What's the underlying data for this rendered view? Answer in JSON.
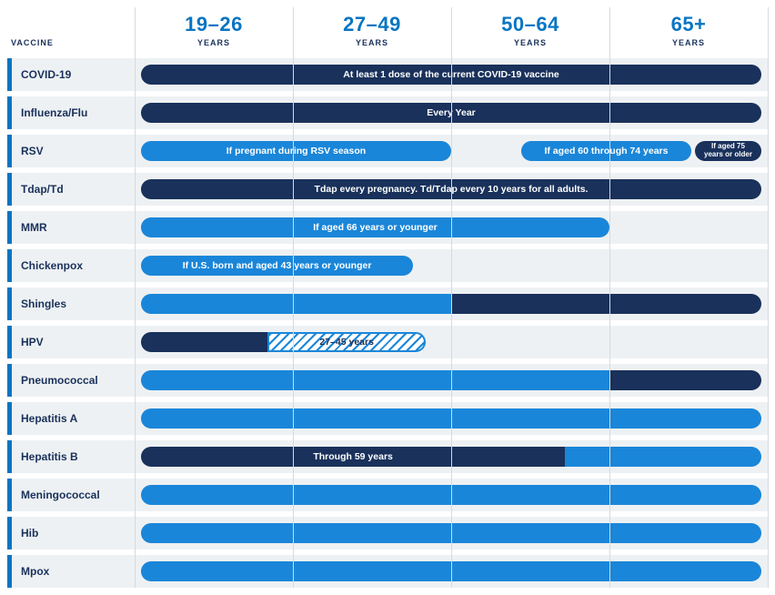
{
  "colors": {
    "dark": "#19315b",
    "light": "#1a86d9",
    "row_bg": "#eef1f3",
    "divider": "#d6dade",
    "accent": "#0a75c2"
  },
  "header": {
    "vaccine_label": "VACCINE",
    "years_label": "YEARS",
    "ages": [
      "19–26",
      "27–49",
      "50–64",
      "65+"
    ]
  },
  "trackStartPct": 1.0,
  "trackEndPct": 99.0,
  "rows": [
    {
      "name": "COVID-19",
      "bars": [
        {
          "start": 1,
          "end": 99,
          "color": "dark",
          "label": "At least 1 dose of the current COVID-19 vaccine"
        }
      ]
    },
    {
      "name": "Influenza/Flu",
      "bars": [
        {
          "start": 1,
          "end": 99,
          "color": "dark",
          "label": "Every Year"
        }
      ]
    },
    {
      "name": "RSV",
      "bars": [
        {
          "start": 1,
          "end": 50,
          "color": "light",
          "label": "If pregnant during RSV season"
        },
        {
          "start": 61,
          "end": 88,
          "color": "light",
          "label": "If aged 60 through 74 years"
        },
        {
          "start": 88.5,
          "end": 99,
          "color": "dark",
          "label": "If aged 75 years or older",
          "small": true
        }
      ]
    },
    {
      "name": "Tdap/Td",
      "bars": [
        {
          "start": 1,
          "end": 99,
          "color": "dark",
          "label": "Tdap every pregnancy. Td/Tdap every 10 years for all adults."
        }
      ]
    },
    {
      "name": "MMR",
      "bars": [
        {
          "start": 1,
          "end": 75,
          "color": "light",
          "label": "If aged 66 years or younger"
        }
      ]
    },
    {
      "name": "Chickenpox",
      "bars": [
        {
          "start": 1,
          "end": 44,
          "color": "light",
          "label": "If U.S. born and aged 43 years or younger"
        }
      ]
    },
    {
      "name": "Shingles",
      "bars": [
        {
          "start": 1,
          "end": 50,
          "color": "light",
          "label": "",
          "flatRight": true
        },
        {
          "start": 50,
          "end": 99,
          "color": "dark",
          "label": "",
          "flatLeft": true
        }
      ]
    },
    {
      "name": "HPV",
      "bars": [
        {
          "start": 1,
          "end": 21,
          "color": "dark",
          "label": "",
          "flatRight": true
        },
        {
          "start": 21,
          "end": 46,
          "color": "hatched",
          "label": "27–45 years",
          "flatLeft": true
        }
      ]
    },
    {
      "name": "Pneumococcal",
      "bars": [
        {
          "start": 1,
          "end": 75,
          "color": "light",
          "label": "",
          "flatRight": true
        },
        {
          "start": 75,
          "end": 99,
          "color": "dark",
          "label": "",
          "flatLeft": true
        }
      ]
    },
    {
      "name": "Hepatitis A",
      "bars": [
        {
          "start": 1,
          "end": 99,
          "color": "light",
          "label": ""
        }
      ]
    },
    {
      "name": "Hepatitis B",
      "bars": [
        {
          "start": 1,
          "end": 68,
          "color": "dark",
          "label": "Through 59 years",
          "flatRight": true
        },
        {
          "start": 68,
          "end": 99,
          "color": "light",
          "label": "",
          "flatLeft": true
        }
      ]
    },
    {
      "name": "Meningococcal",
      "bars": [
        {
          "start": 1,
          "end": 99,
          "color": "light",
          "label": ""
        }
      ]
    },
    {
      "name": "Hib",
      "bars": [
        {
          "start": 1,
          "end": 99,
          "color": "light",
          "label": ""
        }
      ]
    },
    {
      "name": "Mpox",
      "bars": [
        {
          "start": 1,
          "end": 99,
          "color": "light",
          "label": ""
        }
      ]
    }
  ]
}
